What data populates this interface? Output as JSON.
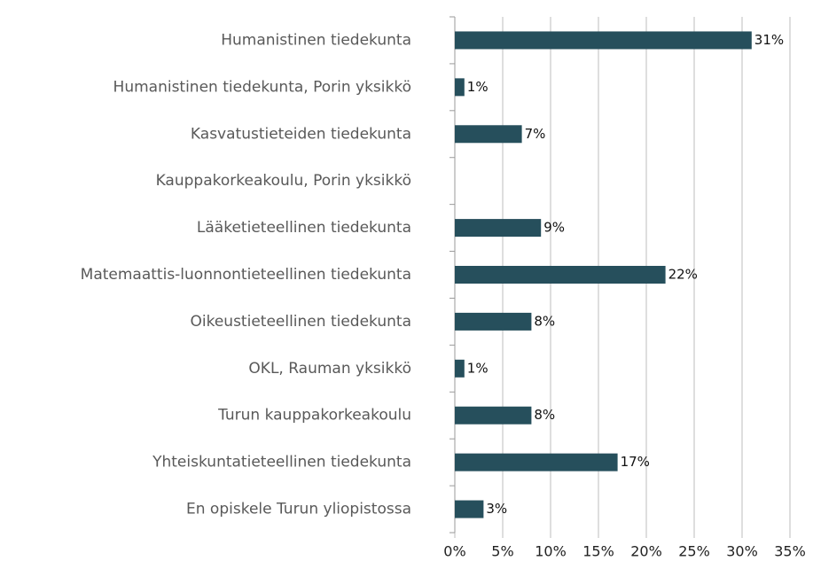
{
  "chart_data": {
    "type": "bar",
    "orientation": "horizontal",
    "categories": [
      "Humanistinen tiedekunta",
      "Humanistinen tiedekunta, Porin yksikkö",
      "Kasvatustieteiden tiedekunta",
      "Kauppakorkeakoulu, Porin yksikkö",
      "Lääketieteellinen tiedekunta",
      "Matemaattis-luonnontieteellinen tiedekunta",
      "Oikeustieteellinen tiedekunta",
      "OKL, Rauman yksikkö",
      "Turun kauppakorkeakoulu",
      "Yhteiskuntatieteellinen tiedekunta",
      "En opiskele Turun yliopistossa"
    ],
    "values": [
      31,
      1,
      7,
      0,
      9,
      22,
      8,
      1,
      8,
      17,
      3
    ],
    "value_labels": [
      "31%",
      "1%",
      "7%",
      null,
      "9%",
      "22%",
      "8%",
      "1%",
      "8%",
      "17%",
      "3%"
    ],
    "color": "#264f5c",
    "xlim": [
      0,
      35
    ],
    "xticks": [
      {
        "value": 0,
        "label": "0%"
      },
      {
        "value": 5,
        "label": "5%"
      },
      {
        "value": 10,
        "label": "10%"
      },
      {
        "value": 15,
        "label": "15%"
      },
      {
        "value": 20,
        "label": "20%"
      },
      {
        "value": 25,
        "label": "25%"
      },
      {
        "value": 30,
        "label": "30%"
      },
      {
        "value": 35,
        "label": "35%"
      }
    ],
    "grid": true
  }
}
